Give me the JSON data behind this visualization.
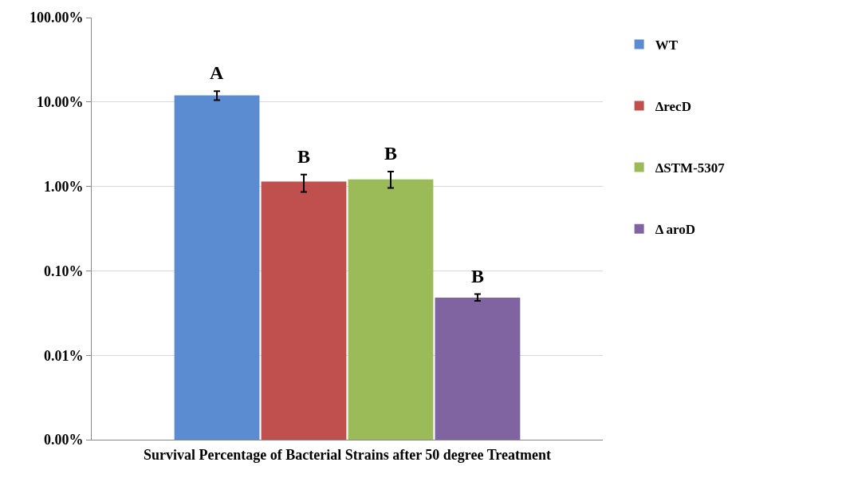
{
  "chart_data": {
    "type": "bar",
    "xlabel": "Survival Percentage of Bacterial Strains after 50 degree Treatment",
    "categories": [
      null
    ],
    "series": [
      {
        "name": "WT",
        "color": "#5b8bd0",
        "values": [
          12
        ],
        "errors": [
          [
            10.5,
            13.4
          ]
        ]
      },
      {
        "name": "ΔrecD",
        "color": "#c0504d",
        "values": [
          1.14
        ],
        "errors": [
          [
            0.86,
            1.38
          ]
        ]
      },
      {
        "name": "ΔSTM-5307",
        "color": "#9bbb59",
        "values": [
          1.21
        ],
        "errors": [
          [
            0.96,
            1.5
          ]
        ]
      },
      {
        "name": "Δ aroD",
        "color": "#8064a2",
        "values": [
          0.048
        ],
        "errors": [
          [
            0.044,
            0.053
          ]
        ]
      }
    ],
    "annotations": [
      "A",
      "B",
      "B",
      "B"
    ],
    "log": true,
    "ylim": [
      0.001,
      100
    ],
    "yticks": [
      {
        "value": 0.001,
        "label": "0.00%"
      },
      {
        "value": 0.01,
        "label": "0.01%"
      },
      {
        "value": 0.1,
        "label": "0.10%"
      },
      {
        "value": 1,
        "label": "1.00%"
      },
      {
        "value": 10,
        "label": "10.00%"
      },
      {
        "value": 100,
        "label": "100.00%"
      }
    ],
    "grid": "y",
    "legend": "right"
  }
}
